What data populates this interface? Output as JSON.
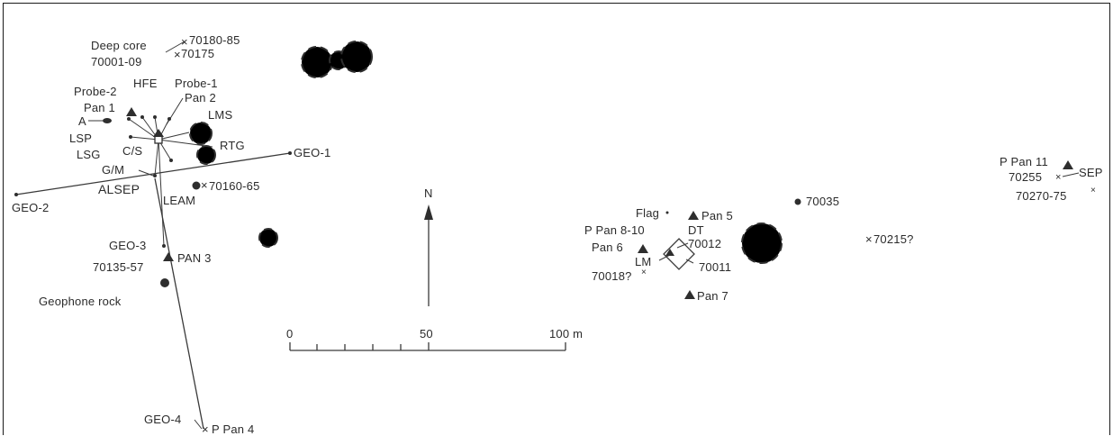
{
  "north_label": "N",
  "scale": {
    "ticks": [
      "0",
      "50",
      "100 m"
    ]
  },
  "labels": {
    "deep_core": "Deep core",
    "sample_70001_09": "70001-09",
    "sample_70180_85": "70180-85",
    "sample_70175": "70175",
    "probe_2": "Probe-2",
    "hfe": "HFE",
    "probe_1": "Probe-1",
    "pan_2": "Pan 2",
    "pan_1": "Pan 1",
    "lms": "LMS",
    "a": "A",
    "lsp": "LSP",
    "cs": "C/S",
    "rtg": "RTG",
    "lsg": "LSG",
    "geo_1": "GEO-1",
    "gm": "G/M",
    "alsep": "ALSEP",
    "sample_70160_65": "70160-65",
    "leam": "LEAM",
    "geo_2": "GEO-2",
    "geo_3": "GEO-3",
    "sample_70135_57": "70135-57",
    "pan_3": "PAN 3",
    "geophone_rock": "Geophone rock",
    "geo_4": "GEO-4",
    "p_pan_4": "P Pan 4",
    "flag": "Flag",
    "pan_5": "Pan 5",
    "sample_70035": "70035",
    "p_pan_8_10": "P Pan 8-10",
    "dt": "DT",
    "pan_6": "Pan 6",
    "sample_70012": "70012",
    "lm": "LM",
    "sample_70011": "70011",
    "sample_70018": "70018?",
    "pan_7": "Pan 7",
    "sample_70215": "70215?",
    "p_pan_11": "P Pan 11",
    "sample_70255": "70255",
    "sep": "SEP",
    "sample_70270_75": "70270-75"
  }
}
